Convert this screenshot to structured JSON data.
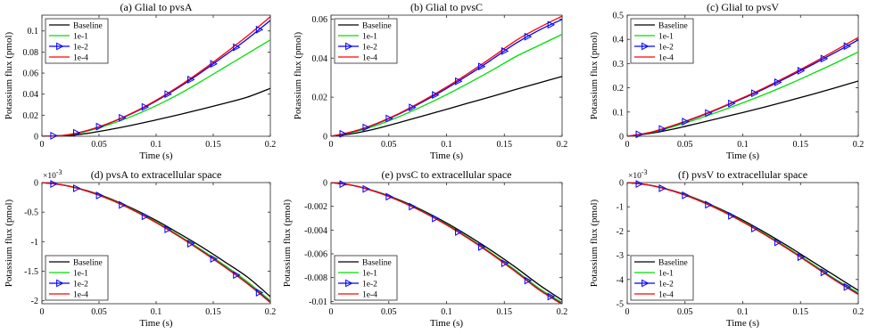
{
  "colors": {
    "Baseline": "#000000",
    "1e-1": "#00e000",
    "1e-2": "#0000ff",
    "1e-4": "#ff0000"
  },
  "chart_data": [
    {
      "type": "line",
      "title": "(a) Glial to pvsA",
      "xlabel": "Time (s)",
      "ylabel": "Potassium flux (pmol)",
      "xlim": [
        0,
        0.2
      ],
      "ylim": [
        0,
        0.115
      ],
      "xticks": [
        0,
        0.05,
        0.1,
        0.15,
        0.2
      ],
      "xtick_labels": [
        "0",
        "0.05",
        "0.1",
        "0.15",
        "0.2"
      ],
      "yticks": [
        0,
        0.02,
        0.04,
        0.06,
        0.08,
        0.1
      ],
      "ytick_labels": [
        "0",
        "0.02",
        "0.04",
        "0.06",
        "0.08",
        "0.1"
      ],
      "exponent": "",
      "legend": "top-left",
      "grid": false,
      "series": [
        {
          "name": "Baseline",
          "x": [
            0,
            0.02,
            0.04,
            0.06,
            0.08,
            0.1,
            0.12,
            0.14,
            0.16,
            0.18,
            0.2
          ],
          "y": [
            0,
            0.0004,
            0.0028,
            0.0065,
            0.0108,
            0.0155,
            0.0205,
            0.0258,
            0.0313,
            0.0372,
            0.0455
          ]
        },
        {
          "name": "1e-1",
          "x": [
            0,
            0.02,
            0.04,
            0.06,
            0.08,
            0.1,
            0.12,
            0.14,
            0.16,
            0.18,
            0.2
          ],
          "y": [
            0,
            0.0008,
            0.005,
            0.0115,
            0.0195,
            0.029,
            0.04,
            0.0525,
            0.0655,
            0.0785,
            0.0915
          ]
        },
        {
          "name": "1e-2",
          "x": [
            0,
            0.02,
            0.04,
            0.06,
            0.08,
            0.1,
            0.12,
            0.14,
            0.16,
            0.18,
            0.2
          ],
          "y": [
            0,
            0.001,
            0.0055,
            0.0128,
            0.0222,
            0.0335,
            0.0465,
            0.061,
            0.0765,
            0.0925,
            0.11
          ],
          "markers_x": [
            0.01,
            0.03,
            0.05,
            0.07,
            0.09,
            0.11,
            0.13,
            0.15,
            0.17,
            0.19
          ]
        },
        {
          "name": "1e-4",
          "x": [
            0,
            0.02,
            0.04,
            0.06,
            0.08,
            0.1,
            0.12,
            0.14,
            0.16,
            0.18,
            0.2
          ],
          "y": [
            0,
            0.001,
            0.0056,
            0.013,
            0.0226,
            0.0342,
            0.0475,
            0.0624,
            0.0785,
            0.0953,
            0.1135
          ]
        }
      ]
    },
    {
      "type": "line",
      "title": "(b) Glial to pvsC",
      "xlabel": "Time (s)",
      "ylabel": "Potassium flux (pmol)",
      "xlim": [
        0,
        0.2
      ],
      "ylim": [
        0,
        0.062
      ],
      "xticks": [
        0,
        0.05,
        0.1,
        0.15,
        0.2
      ],
      "xtick_labels": [
        "0",
        "0.05",
        "0.1",
        "0.15",
        "0.2"
      ],
      "yticks": [
        0,
        0.02,
        0.04,
        0.06
      ],
      "ytick_labels": [
        "0",
        "0.02",
        "0.04",
        "0.06"
      ],
      "exponent": "",
      "legend": "top-left",
      "grid": false,
      "series": [
        {
          "name": "Baseline",
          "x": [
            0,
            0.02,
            0.04,
            0.06,
            0.08,
            0.1,
            0.12,
            0.14,
            0.16,
            0.18,
            0.2
          ],
          "y": [
            0,
            0.0015,
            0.004,
            0.0072,
            0.0105,
            0.0138,
            0.0172,
            0.0205,
            0.024,
            0.0273,
            0.0306
          ]
        },
        {
          "name": "1e-1",
          "x": [
            0,
            0.02,
            0.04,
            0.06,
            0.08,
            0.1,
            0.12,
            0.14,
            0.16,
            0.18,
            0.2
          ],
          "y": [
            0,
            0.0022,
            0.0057,
            0.0103,
            0.0156,
            0.0213,
            0.0275,
            0.034,
            0.0408,
            0.0465,
            0.0522
          ]
        },
        {
          "name": "1e-2",
          "x": [
            0,
            0.02,
            0.04,
            0.06,
            0.08,
            0.1,
            0.12,
            0.14,
            0.16,
            0.18,
            0.2
          ],
          "y": [
            0,
            0.0025,
            0.0065,
            0.0117,
            0.0178,
            0.0245,
            0.0318,
            0.0396,
            0.0476,
            0.0543,
            0.0598
          ],
          "markers_x": [
            0.01,
            0.03,
            0.05,
            0.07,
            0.09,
            0.11,
            0.13,
            0.15,
            0.17,
            0.19
          ]
        },
        {
          "name": "1e-4",
          "x": [
            0,
            0.02,
            0.04,
            0.06,
            0.08,
            0.1,
            0.12,
            0.14,
            0.16,
            0.18,
            0.2
          ],
          "y": [
            0,
            0.0026,
            0.0067,
            0.012,
            0.0183,
            0.0252,
            0.0327,
            0.0407,
            0.049,
            0.0556,
            0.0615
          ]
        }
      ]
    },
    {
      "type": "line",
      "title": "(c) Glial to pvsV",
      "xlabel": "Time (s)",
      "ylabel": "Potassium flux (pmol)",
      "xlim": [
        0,
        0.2
      ],
      "ylim": [
        0,
        0.5
      ],
      "xticks": [
        0,
        0.05,
        0.1,
        0.15,
        0.2
      ],
      "xtick_labels": [
        "0",
        "0.05",
        "0.1",
        "0.15",
        "0.2"
      ],
      "yticks": [
        0,
        0.1,
        0.2,
        0.3,
        0.4,
        0.5
      ],
      "ytick_labels": [
        "0",
        "0.1",
        "0.2",
        "0.3",
        "0.4",
        "0.5"
      ],
      "exponent": "",
      "legend": "top-left",
      "grid": false,
      "series": [
        {
          "name": "Baseline",
          "x": [
            0,
            0.02,
            0.04,
            0.06,
            0.08,
            0.1,
            0.12,
            0.14,
            0.16,
            0.18,
            0.2
          ],
          "y": [
            0,
            0.012,
            0.03,
            0.052,
            0.075,
            0.098,
            0.122,
            0.147,
            0.173,
            0.2,
            0.228
          ]
        },
        {
          "name": "1e-1",
          "x": [
            0,
            0.02,
            0.04,
            0.06,
            0.08,
            0.1,
            0.12,
            0.14,
            0.16,
            0.18,
            0.2
          ],
          "y": [
            0,
            0.015,
            0.04,
            0.07,
            0.103,
            0.138,
            0.175,
            0.215,
            0.258,
            0.302,
            0.348
          ]
        },
        {
          "name": "1e-2",
          "x": [
            0,
            0.02,
            0.04,
            0.06,
            0.08,
            0.1,
            0.12,
            0.14,
            0.16,
            0.18,
            0.2
          ],
          "y": [
            0,
            0.016,
            0.044,
            0.077,
            0.115,
            0.156,
            0.199,
            0.246,
            0.295,
            0.346,
            0.398
          ],
          "markers_x": [
            0.01,
            0.03,
            0.05,
            0.07,
            0.09,
            0.11,
            0.13,
            0.15,
            0.17,
            0.19
          ]
        },
        {
          "name": "1e-4",
          "x": [
            0,
            0.02,
            0.04,
            0.06,
            0.08,
            0.1,
            0.12,
            0.14,
            0.16,
            0.18,
            0.2
          ],
          "y": [
            0,
            0.016,
            0.045,
            0.079,
            0.117,
            0.159,
            0.203,
            0.251,
            0.301,
            0.354,
            0.408
          ]
        }
      ]
    },
    {
      "type": "line",
      "title": "(d) pvsA to extracellular space",
      "xlabel": "Time (s)",
      "ylabel": "Potassium flux (pmol)",
      "xlim": [
        0,
        0.2
      ],
      "ylim": [
        -2.05,
        0
      ],
      "xticks": [
        0,
        0.05,
        0.1,
        0.15,
        0.2
      ],
      "xtick_labels": [
        "0",
        "0.05",
        "0.1",
        "0.15",
        "0.2"
      ],
      "yticks": [
        -2,
        -1.5,
        -1,
        -0.5,
        0
      ],
      "ytick_labels": [
        "-2",
        "-1.5",
        "-1",
        "-0.5",
        "0"
      ],
      "exponent": "10",
      "exponent_power": "-3",
      "legend": "bottom-left",
      "grid": false,
      "series": [
        {
          "name": "Baseline",
          "x": [
            0,
            0.02,
            0.04,
            0.06,
            0.08,
            0.1,
            0.12,
            0.14,
            0.16,
            0.18,
            0.2
          ],
          "y": [
            0,
            -0.045,
            -0.14,
            -0.275,
            -0.445,
            -0.64,
            -0.86,
            -1.09,
            -1.34,
            -1.6,
            -1.93
          ]
        },
        {
          "name": "1e-1",
          "x": [
            0,
            0.02,
            0.04,
            0.06,
            0.08,
            0.1,
            0.12,
            0.14,
            0.16,
            0.18,
            0.2
          ],
          "y": [
            0,
            -0.046,
            -0.145,
            -0.285,
            -0.46,
            -0.665,
            -0.895,
            -1.14,
            -1.4,
            -1.68,
            -2.0
          ]
        },
        {
          "name": "1e-2",
          "x": [
            0,
            0.02,
            0.04,
            0.06,
            0.08,
            0.1,
            0.12,
            0.14,
            0.16,
            0.18,
            0.2
          ],
          "y": [
            0,
            -0.047,
            -0.147,
            -0.289,
            -0.467,
            -0.675,
            -0.908,
            -1.158,
            -1.422,
            -1.705,
            -2.02
          ],
          "markers_x": [
            0.01,
            0.03,
            0.05,
            0.07,
            0.09,
            0.11,
            0.13,
            0.15,
            0.17,
            0.19
          ]
        },
        {
          "name": "1e-4",
          "x": [
            0,
            0.02,
            0.04,
            0.06,
            0.08,
            0.1,
            0.12,
            0.14,
            0.16,
            0.18,
            0.2
          ],
          "y": [
            0,
            -0.047,
            -0.148,
            -0.29,
            -0.469,
            -0.678,
            -0.912,
            -1.163,
            -1.428,
            -1.712,
            -2.03
          ]
        }
      ]
    },
    {
      "type": "line",
      "title": "(e) pvsC to extracellular space",
      "xlabel": "Time (s)",
      "ylabel": "Potassium flux (pmol)",
      "xlim": [
        0,
        0.2
      ],
      "ylim": [
        -0.0102,
        0
      ],
      "xticks": [
        0,
        0.05,
        0.1,
        0.15,
        0.2
      ],
      "xtick_labels": [
        "0",
        "0.05",
        "0.1",
        "0.15",
        "0.2"
      ],
      "yticks": [
        -0.01,
        -0.008,
        -0.006,
        -0.004,
        -0.002,
        0
      ],
      "ytick_labels": [
        "-0.01",
        "-0.008",
        "-0.006",
        "-0.004",
        "-0.002",
        "0"
      ],
      "exponent": "",
      "legend": "bottom-left",
      "grid": false,
      "series": [
        {
          "name": "Baseline",
          "x": [
            0,
            0.02,
            0.04,
            0.06,
            0.08,
            0.1,
            0.12,
            0.14,
            0.16,
            0.18,
            0.2
          ],
          "y": [
            0,
            -0.00025,
            -0.00078,
            -0.0015,
            -0.00238,
            -0.0034,
            -0.00455,
            -0.0058,
            -0.00715,
            -0.0086,
            -0.0099
          ]
        },
        {
          "name": "1e-1",
          "x": [
            0,
            0.02,
            0.04,
            0.06,
            0.08,
            0.1,
            0.12,
            0.14,
            0.16,
            0.18,
            0.2
          ],
          "y": [
            0,
            -0.00026,
            -0.0008,
            -0.00155,
            -0.00245,
            -0.0035,
            -0.0047,
            -0.006,
            -0.0074,
            -0.0089,
            -0.0101
          ]
        },
        {
          "name": "1e-2",
          "x": [
            0,
            0.02,
            0.04,
            0.06,
            0.08,
            0.1,
            0.12,
            0.14,
            0.16,
            0.18,
            0.2
          ],
          "y": [
            0,
            -0.00026,
            -0.00081,
            -0.00157,
            -0.00248,
            -0.00355,
            -0.00476,
            -0.00608,
            -0.0075,
            -0.009,
            -0.0102
          ],
          "markers_x": [
            0.01,
            0.03,
            0.05,
            0.07,
            0.09,
            0.11,
            0.13,
            0.15,
            0.17,
            0.19
          ]
        },
        {
          "name": "1e-4",
          "x": [
            0,
            0.02,
            0.04,
            0.06,
            0.08,
            0.1,
            0.12,
            0.14,
            0.16,
            0.18,
            0.2
          ],
          "y": [
            0,
            -0.00026,
            -0.00082,
            -0.00158,
            -0.0025,
            -0.00357,
            -0.00478,
            -0.0061,
            -0.00753,
            -0.00903,
            -0.01025
          ]
        }
      ]
    },
    {
      "type": "line",
      "title": "(f) pvsV to extracellular space",
      "xlabel": "Time (s)",
      "ylabel": "Potassium flux (pmol)",
      "xlim": [
        0,
        0.2
      ],
      "ylim": [
        -5,
        0
      ],
      "xticks": [
        0,
        0.05,
        0.1,
        0.15,
        0.2
      ],
      "xtick_labels": [
        "0",
        "0.05",
        "0.1",
        "0.15",
        "0.2"
      ],
      "yticks": [
        -5,
        -4,
        -3,
        -2,
        -1,
        0
      ],
      "ytick_labels": [
        "-5",
        "-4",
        "-3",
        "-2",
        "-1",
        "0"
      ],
      "exponent": "10",
      "exponent_power": "-3",
      "legend": "bottom-left",
      "grid": false,
      "series": [
        {
          "name": "Baseline",
          "x": [
            0,
            0.02,
            0.04,
            0.06,
            0.08,
            0.1,
            0.12,
            0.14,
            0.16,
            0.18,
            0.2
          ],
          "y": [
            0,
            -0.11,
            -0.34,
            -0.67,
            -1.08,
            -1.55,
            -2.08,
            -2.65,
            -3.25,
            -3.85,
            -4.45
          ]
        },
        {
          "name": "1e-1",
          "x": [
            0,
            0.02,
            0.04,
            0.06,
            0.08,
            0.1,
            0.12,
            0.14,
            0.16,
            0.18,
            0.2
          ],
          "y": [
            0,
            -0.112,
            -0.35,
            -0.69,
            -1.11,
            -1.6,
            -2.14,
            -2.73,
            -3.35,
            -3.98,
            -4.55
          ]
        },
        {
          "name": "1e-2",
          "x": [
            0,
            0.02,
            0.04,
            0.06,
            0.08,
            0.1,
            0.12,
            0.14,
            0.16,
            0.18,
            0.2
          ],
          "y": [
            0,
            -0.113,
            -0.355,
            -0.7,
            -1.125,
            -1.62,
            -2.17,
            -2.76,
            -3.39,
            -4.02,
            -4.6
          ],
          "markers_x": [
            0.01,
            0.03,
            0.05,
            0.07,
            0.09,
            0.11,
            0.13,
            0.15,
            0.17,
            0.19
          ]
        },
        {
          "name": "1e-4",
          "x": [
            0,
            0.02,
            0.04,
            0.06,
            0.08,
            0.1,
            0.12,
            0.14,
            0.16,
            0.18,
            0.2
          ],
          "y": [
            0,
            -0.114,
            -0.357,
            -0.703,
            -1.13,
            -1.625,
            -2.178,
            -2.77,
            -3.4,
            -4.04,
            -4.62
          ]
        }
      ]
    }
  ]
}
